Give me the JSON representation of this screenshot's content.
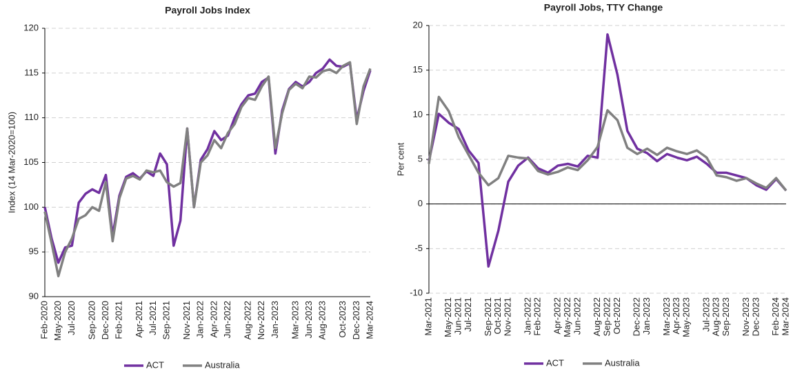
{
  "chart_data": [
    {
      "type": "line",
      "title": "Payroll Jobs Index",
      "y_label": "Index (14 Mar-2020=100)",
      "categories": [
        "Feb-2020",
        null,
        "May-2020",
        null,
        "Jul-2020",
        null,
        null,
        "Sep-2020",
        null,
        "Dec-2020",
        null,
        "Feb-2021",
        null,
        null,
        "Apr-2021",
        null,
        "Jul-2021",
        null,
        "Sep-2021",
        null,
        null,
        "Nov-2021",
        null,
        "Jan-2022",
        null,
        "Apr-2022",
        null,
        "Jun-2022",
        null,
        null,
        "Aug-2022",
        null,
        "Nov-2022",
        null,
        "Jan-2023",
        null,
        null,
        "Mar-2023",
        null,
        "Jun-2023",
        null,
        "Aug-2023",
        null,
        null,
        "Oct-2023",
        null,
        "Dec-2023",
        null,
        "Mar-2024"
      ],
      "series": [
        {
          "name": "ACT",
          "color": "#7030a0",
          "values": [
            100,
            96.5,
            93.8,
            95.5,
            95.7,
            100.5,
            101.5,
            102,
            101.6,
            103.6,
            96.8,
            101.3,
            103.4,
            103.8,
            103.2,
            104,
            103.5,
            106,
            104.8,
            95.7,
            98.5,
            108.8,
            100,
            105.3,
            106.5,
            108.5,
            107.5,
            108,
            110,
            111.5,
            112.5,
            112.7,
            114,
            114.5,
            106,
            110.8,
            113.2,
            114,
            113.5,
            114,
            115,
            115.5,
            116.5,
            115.8,
            115.7,
            116.1,
            109.8,
            113,
            115.3
          ]
        },
        {
          "name": "Australia",
          "color": "#808080",
          "values": [
            99.5,
            96,
            92.3,
            95,
            96.5,
            98.7,
            99.1,
            100,
            99.6,
            102.8,
            96.2,
            101,
            103.2,
            103.5,
            103.1,
            104.1,
            103.9,
            104.1,
            102.8,
            102.3,
            102.7,
            108.8,
            100,
            105,
            105.8,
            107.5,
            106.6,
            108.3,
            109.3,
            111.2,
            112.2,
            112,
            113.5,
            114.6,
            106.6,
            110.5,
            113.1,
            113.8,
            113.3,
            114.6,
            114.5,
            115.2,
            115.4,
            115,
            115.8,
            116.2,
            109.3,
            113.5,
            115.5
          ]
        }
      ],
      "ylim": [
        90,
        120
      ],
      "yticks": [
        90,
        95,
        100,
        105,
        110,
        115,
        120
      ],
      "grid": true
    },
    {
      "type": "line",
      "title": "Payroll Jobs, TTY Change",
      "y_label": "Per cent",
      "categories": [
        "Mar-2021",
        null,
        "May-2021",
        "Jun-2021",
        "Jul-2021",
        null,
        "Sep-2021",
        "Oct-2021",
        "Nov-2021",
        null,
        "Jan-2022",
        "Feb-2022",
        null,
        "Apr-2022",
        "May-2022",
        "Jun-2022",
        null,
        "Aug-2022",
        "Sep-2022",
        "Oct-2022",
        null,
        "Dec-2022",
        "Jan-2023",
        null,
        "Mar-2023",
        "Apr-2023",
        "May-2023",
        null,
        "Jul-2023",
        "Aug-2023",
        "Sep-2023",
        null,
        "Nov-2023",
        "Dec-2023",
        null,
        "Feb-2024",
        "Mar-2024"
      ],
      "series": [
        {
          "name": "ACT",
          "color": "#7030a0",
          "values": [
            4.8,
            10.1,
            9.1,
            8.4,
            6,
            4.6,
            -7,
            -3,
            2.5,
            4.3,
            5.2,
            4,
            3.5,
            4.3,
            4.5,
            4.2,
            5.4,
            5.2,
            19,
            14.5,
            8.2,
            6.2,
            5.7,
            4.8,
            5.6,
            5.2,
            4.9,
            5.3,
            4.5,
            3.5,
            3.5,
            3.2,
            2.9,
            2.1,
            1.6,
            2.8,
            1.5
          ]
        },
        {
          "name": "Australia",
          "color": "#808080",
          "values": [
            4.5,
            12,
            10.4,
            7.5,
            5.5,
            3.5,
            2.1,
            2.9,
            5.4,
            5.2,
            5.1,
            3.7,
            3.3,
            3.6,
            4.1,
            3.8,
            4.9,
            6.4,
            10.5,
            9.4,
            6.3,
            5.6,
            6.2,
            5.5,
            6.3,
            5.9,
            5.6,
            6,
            5.2,
            3.2,
            3,
            2.6,
            2.9,
            2.3,
            1.8,
            2.9,
            1.5
          ]
        }
      ],
      "ylim": [
        -10,
        20
      ],
      "yticks": [
        -10,
        -5,
        0,
        5,
        10,
        15,
        20
      ],
      "grid": true
    }
  ]
}
